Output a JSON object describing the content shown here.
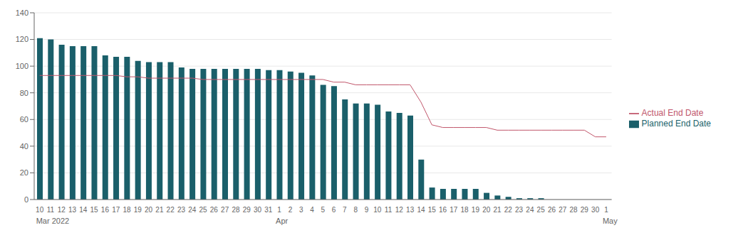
{
  "chart_data": {
    "type": "bar",
    "categories": [
      "10",
      "11",
      "12",
      "13",
      "14",
      "15",
      "16",
      "17",
      "18",
      "19",
      "20",
      "21",
      "22",
      "23",
      "24",
      "25",
      "26",
      "27",
      "28",
      "29",
      "30",
      "31",
      "1",
      "2",
      "3",
      "4",
      "5",
      "6",
      "7",
      "8",
      "9",
      "10",
      "11",
      "12",
      "13",
      "14",
      "15",
      "16",
      "17",
      "18",
      "19",
      "20",
      "21",
      "22",
      "23",
      "24",
      "25",
      "26",
      "27",
      "28",
      "29",
      "30",
      "1"
    ],
    "series": [
      {
        "name": "Planned End Date",
        "type": "bar",
        "color": "#1a5f6a",
        "values": [
          121,
          120,
          116,
          115,
          115,
          115,
          108,
          107,
          107,
          104,
          103,
          103,
          103,
          99,
          98,
          98,
          98,
          98,
          98,
          98,
          98,
          97,
          97,
          96,
          95,
          93,
          86,
          85,
          75,
          72,
          72,
          71,
          66,
          65,
          63,
          30,
          9,
          8,
          8,
          8,
          8,
          5,
          3,
          2,
          1,
          1,
          1,
          0,
          0,
          0,
          0,
          0,
          0
        ]
      },
      {
        "name": "Actual End Date",
        "type": "line",
        "color": "#c0556a",
        "values": [
          93,
          93,
          93,
          93,
          93,
          93,
          93,
          93,
          92,
          92,
          91,
          91,
          91,
          91,
          91,
          90,
          90,
          90,
          90,
          90,
          90,
          90,
          90,
          90,
          90,
          90,
          90,
          88,
          88,
          86,
          86,
          86,
          86,
          86,
          86,
          73,
          56,
          54,
          54,
          54,
          54,
          54,
          52,
          52,
          52,
          52,
          52,
          52,
          52,
          52,
          52,
          47,
          47
        ]
      }
    ],
    "ylim": [
      0,
      140
    ],
    "yticks": [
      0,
      20,
      40,
      60,
      80,
      100,
      120,
      140
    ],
    "grid": true,
    "legend": "right",
    "annotations": [
      {
        "text": "Mar 2022",
        "index": 0
      },
      {
        "text": "Apr",
        "index": 22
      },
      {
        "text": "May",
        "index": 52
      }
    ]
  }
}
